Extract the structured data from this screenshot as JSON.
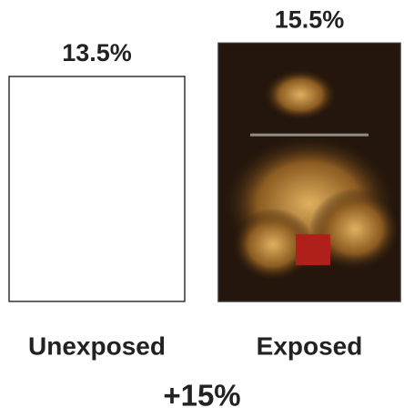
{
  "chart_data": {
    "type": "bar",
    "categories": [
      "Unexposed",
      "Exposed"
    ],
    "values": [
      13.5,
      15.5
    ],
    "value_labels": [
      "13.5%",
      "15.5%"
    ],
    "colors": [
      "#ffffff",
      "#24160c"
    ],
    "annotation": "+15%",
    "annotation_color": "#2d5a1f"
  }
}
